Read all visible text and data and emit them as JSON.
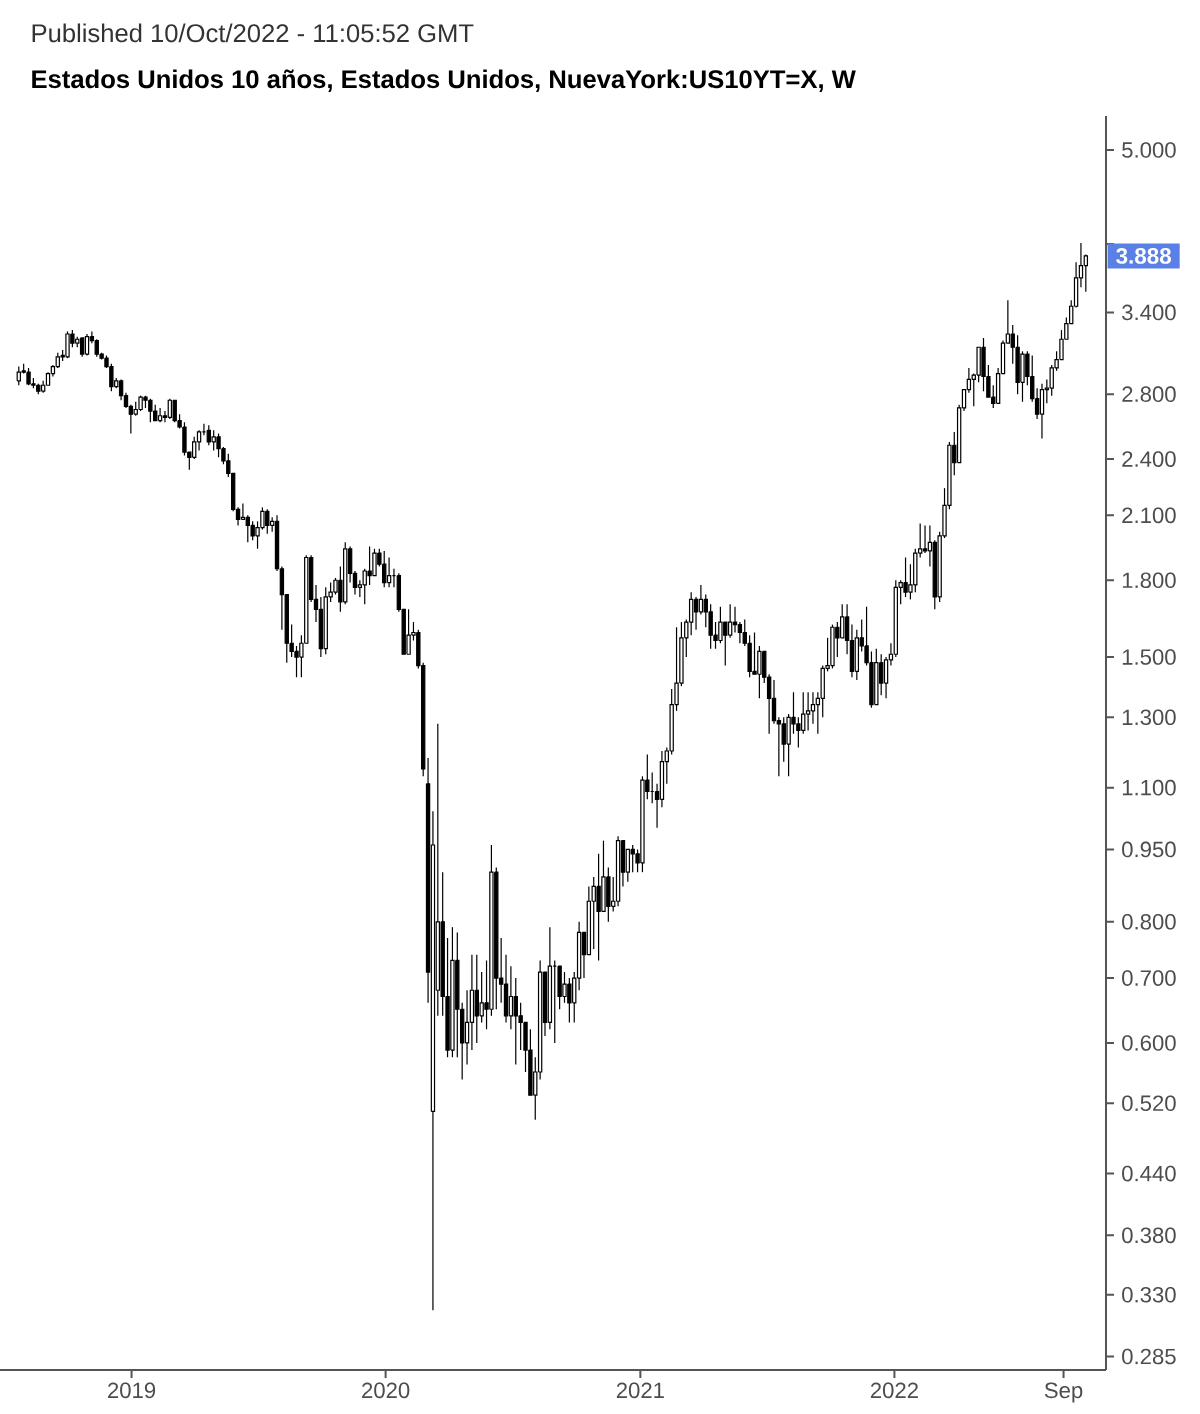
{
  "chart_data": {
    "type": "candlestick",
    "title": "Estados Unidos 10 años, Estados Unidos, NuevaYork:US10YT=X, W",
    "annotations": [
      "Published 10/Oct/2022 - 11:05:52 GMT",
      {
        "text": "3.888",
        "y": 3.888
      }
    ],
    "color": "#000000",
    "log": true,
    "xlim": [
      "2018-06-26",
      "2022-11-01"
    ],
    "xticks": [
      {
        "value": "2019-01-01",
        "label": "2019"
      },
      {
        "value": "2020-01-01",
        "label": "2020"
      },
      {
        "value": "2021-01-01",
        "label": "2021"
      },
      {
        "value": "2022-01-01",
        "label": "2022"
      },
      {
        "value": "2022-09-01",
        "label": "Sep"
      }
    ],
    "ylim": [
      0.276,
      5.42
    ],
    "yticks": [
      {
        "value": 5,
        "label": "5.000"
      },
      {
        "value": 4,
        "label": null
      },
      {
        "value": 3.4,
        "label": "3.400"
      },
      {
        "value": 2.8,
        "label": "2.800"
      },
      {
        "value": 2.4,
        "label": "2.400"
      },
      {
        "value": 2.1,
        "label": "2.100"
      },
      {
        "value": 1.8,
        "label": "1.800"
      },
      {
        "value": 1.5,
        "label": "1.500"
      },
      {
        "value": 1.3,
        "label": "1.300"
      },
      {
        "value": 1.1,
        "label": "1.100"
      },
      {
        "value": 0.95,
        "label": "0.950"
      },
      {
        "value": 0.8,
        "label": "0.800"
      },
      {
        "value": 0.7,
        "label": "0.700"
      },
      {
        "value": 0.6,
        "label": "0.600"
      },
      {
        "value": 0.52,
        "label": "0.520"
      },
      {
        "value": 0.44,
        "label": "0.440"
      },
      {
        "value": 0.38,
        "label": "0.380"
      },
      {
        "value": 0.33,
        "label": "0.330"
      },
      {
        "value": 0.285,
        "label": "0.285"
      }
    ],
    "x": [
      "2018-07-23",
      "2018-07-30",
      "2018-08-06",
      "2018-08-13",
      "2018-08-20",
      "2018-08-27",
      "2018-09-03",
      "2018-09-10",
      "2018-09-17",
      "2018-09-24",
      "2018-10-01",
      "2018-10-08",
      "2018-10-15",
      "2018-10-22",
      "2018-10-29",
      "2018-11-05",
      "2018-11-12",
      "2018-11-19",
      "2018-11-26",
      "2018-12-03",
      "2018-12-10",
      "2018-12-17",
      "2018-12-24",
      "2018-12-31",
      "2019-01-07",
      "2019-01-14",
      "2019-01-21",
      "2019-01-28",
      "2019-02-04",
      "2019-02-11",
      "2019-02-18",
      "2019-02-25",
      "2019-03-04",
      "2019-03-11",
      "2019-03-18",
      "2019-03-25",
      "2019-04-01",
      "2019-04-08",
      "2019-04-15",
      "2019-04-22",
      "2019-04-29",
      "2019-05-06",
      "2019-05-13",
      "2019-05-20",
      "2019-05-27",
      "2019-06-03",
      "2019-06-10",
      "2019-06-17",
      "2019-06-24",
      "2019-07-01",
      "2019-07-08",
      "2019-07-15",
      "2019-07-22",
      "2019-07-29",
      "2019-08-05",
      "2019-08-12",
      "2019-08-19",
      "2019-08-26",
      "2019-09-02",
      "2019-09-09",
      "2019-09-16",
      "2019-09-23",
      "2019-09-30",
      "2019-10-07",
      "2019-10-14",
      "2019-10-21",
      "2019-10-28",
      "2019-11-04",
      "2019-11-11",
      "2019-11-18",
      "2019-11-25",
      "2019-12-02",
      "2019-12-09",
      "2019-12-16",
      "2019-12-23",
      "2019-12-30",
      "2020-01-06",
      "2020-01-13",
      "2020-01-20",
      "2020-01-27",
      "2020-02-03",
      "2020-02-10",
      "2020-02-17",
      "2020-02-24",
      "2020-03-02",
      "2020-03-09",
      "2020-03-16",
      "2020-03-23",
      "2020-03-30",
      "2020-04-06",
      "2020-04-13",
      "2020-04-20",
      "2020-04-27",
      "2020-05-04",
      "2020-05-11",
      "2020-05-18",
      "2020-05-25",
      "2020-06-01",
      "2020-06-08",
      "2020-06-15",
      "2020-06-22",
      "2020-06-29",
      "2020-07-06",
      "2020-07-13",
      "2020-07-20",
      "2020-07-27",
      "2020-08-03",
      "2020-08-10",
      "2020-08-17",
      "2020-08-24",
      "2020-08-31",
      "2020-09-07",
      "2020-09-14",
      "2020-09-21",
      "2020-09-28",
      "2020-10-05",
      "2020-10-12",
      "2020-10-19",
      "2020-10-26",
      "2020-11-02",
      "2020-11-09",
      "2020-11-16",
      "2020-11-23",
      "2020-11-30",
      "2020-12-07",
      "2020-12-14",
      "2020-12-21",
      "2020-12-28",
      "2021-01-04",
      "2021-01-11",
      "2021-01-18",
      "2021-01-25",
      "2021-02-01",
      "2021-02-08",
      "2021-02-15",
      "2021-02-22",
      "2021-03-01",
      "2021-03-08",
      "2021-03-15",
      "2021-03-22",
      "2021-03-29",
      "2021-04-05",
      "2021-04-12",
      "2021-04-19",
      "2021-04-26",
      "2021-05-03",
      "2021-05-10",
      "2021-05-17",
      "2021-05-24",
      "2021-05-31",
      "2021-06-07",
      "2021-06-14",
      "2021-06-21",
      "2021-06-28",
      "2021-07-05",
      "2021-07-12",
      "2021-07-19",
      "2021-07-26",
      "2021-08-02",
      "2021-08-09",
      "2021-08-16",
      "2021-08-23",
      "2021-08-30",
      "2021-09-06",
      "2021-09-13",
      "2021-09-20",
      "2021-09-27",
      "2021-10-04",
      "2021-10-11",
      "2021-10-18",
      "2021-10-25",
      "2021-11-01",
      "2021-11-08",
      "2021-11-15",
      "2021-11-22",
      "2021-11-29",
      "2021-12-06",
      "2021-12-13",
      "2021-12-20",
      "2021-12-27",
      "2022-01-03",
      "2022-01-10",
      "2022-01-17",
      "2022-01-24",
      "2022-01-31",
      "2022-02-07",
      "2022-02-14",
      "2022-02-21",
      "2022-02-28",
      "2022-03-07",
      "2022-03-14",
      "2022-03-21",
      "2022-03-28",
      "2022-04-04",
      "2022-04-11",
      "2022-04-18",
      "2022-04-25",
      "2022-05-02",
      "2022-05-09",
      "2022-05-16",
      "2022-05-23",
      "2022-05-30",
      "2022-06-06",
      "2022-06-13",
      "2022-06-20",
      "2022-06-27",
      "2022-07-04",
      "2022-07-11",
      "2022-07-18",
      "2022-07-25",
      "2022-08-01",
      "2022-08-08",
      "2022-08-15",
      "2022-08-22",
      "2022-08-29",
      "2022-09-05",
      "2022-09-12",
      "2022-09-19",
      "2022-09-26",
      "2022-10-03"
    ],
    "ohlc": [
      [
        2.89,
        2.99,
        2.86,
        2.95
      ],
      [
        2.96,
        3.01,
        2.94,
        2.95
      ],
      [
        2.95,
        2.98,
        2.86,
        2.87
      ],
      [
        2.87,
        2.91,
        2.84,
        2.86
      ],
      [
        2.86,
        2.87,
        2.8,
        2.82
      ],
      [
        2.82,
        2.89,
        2.81,
        2.86
      ],
      [
        2.86,
        2.95,
        2.86,
        2.94
      ],
      [
        2.94,
        3.0,
        2.92,
        2.99
      ],
      [
        2.99,
        3.09,
        2.98,
        3.06
      ],
      [
        3.07,
        3.11,
        3.03,
        3.06
      ],
      [
        3.06,
        3.25,
        3.05,
        3.23
      ],
      [
        3.23,
        3.26,
        3.13,
        3.16
      ],
      [
        3.16,
        3.21,
        3.13,
        3.19
      ],
      [
        3.2,
        3.2,
        3.06,
        3.08
      ],
      [
        3.08,
        3.23,
        3.07,
        3.21
      ],
      [
        3.21,
        3.25,
        3.16,
        3.18
      ],
      [
        3.18,
        3.19,
        3.06,
        3.08
      ],
      [
        3.08,
        3.09,
        3.04,
        3.05
      ],
      [
        3.05,
        3.07,
        2.98,
        2.99
      ],
      [
        2.99,
        3.01,
        2.82,
        2.85
      ],
      [
        2.85,
        2.91,
        2.84,
        2.89
      ],
      [
        2.89,
        2.9,
        2.76,
        2.79
      ],
      [
        2.79,
        2.81,
        2.71,
        2.72
      ],
      [
        2.72,
        2.73,
        2.55,
        2.67
      ],
      [
        2.67,
        2.75,
        2.66,
        2.7
      ],
      [
        2.7,
        2.79,
        2.69,
        2.78
      ],
      [
        2.78,
        2.79,
        2.71,
        2.76
      ],
      [
        2.76,
        2.77,
        2.62,
        2.69
      ],
      [
        2.69,
        2.73,
        2.63,
        2.63
      ],
      [
        2.63,
        2.71,
        2.62,
        2.66
      ],
      [
        2.66,
        2.69,
        2.62,
        2.65
      ],
      [
        2.65,
        2.77,
        2.64,
        2.76
      ],
      [
        2.76,
        2.76,
        2.62,
        2.63
      ],
      [
        2.63,
        2.67,
        2.58,
        2.59
      ],
      [
        2.59,
        2.62,
        2.42,
        2.44
      ],
      [
        2.44,
        2.44,
        2.34,
        2.41
      ],
      [
        2.41,
        2.53,
        2.4,
        2.5
      ],
      [
        2.5,
        2.57,
        2.45,
        2.56
      ],
      [
        2.56,
        2.61,
        2.54,
        2.56
      ],
      [
        2.57,
        2.6,
        2.48,
        2.5
      ],
      [
        2.5,
        2.57,
        2.45,
        2.53
      ],
      [
        2.53,
        2.55,
        2.41,
        2.46
      ],
      [
        2.46,
        2.47,
        2.37,
        2.39
      ],
      [
        2.39,
        2.43,
        2.3,
        2.32
      ],
      [
        2.32,
        2.32,
        2.12,
        2.13
      ],
      [
        2.13,
        2.14,
        2.05,
        2.08
      ],
      [
        2.08,
        2.16,
        2.08,
        2.09
      ],
      [
        2.09,
        2.1,
        1.97,
        2.05
      ],
      [
        2.05,
        2.07,
        1.98,
        2.0
      ],
      [
        2.0,
        2.07,
        1.94,
        2.04
      ],
      [
        2.04,
        2.14,
        2.03,
        2.12
      ],
      [
        2.12,
        2.13,
        2.01,
        2.05
      ],
      [
        2.05,
        2.09,
        2.02,
        2.07
      ],
      [
        2.07,
        2.1,
        1.84,
        1.85
      ],
      [
        1.85,
        1.86,
        1.6,
        1.74
      ],
      [
        1.74,
        1.74,
        1.48,
        1.55
      ],
      [
        1.55,
        1.62,
        1.5,
        1.52
      ],
      [
        1.52,
        1.54,
        1.43,
        1.5
      ],
      [
        1.5,
        1.58,
        1.43,
        1.55
      ],
      [
        1.55,
        1.91,
        1.55,
        1.9
      ],
      [
        1.9,
        1.91,
        1.71,
        1.72
      ],
      [
        1.72,
        1.78,
        1.63,
        1.68
      ],
      [
        1.68,
        1.73,
        1.5,
        1.53
      ],
      [
        1.53,
        1.77,
        1.51,
        1.73
      ],
      [
        1.73,
        1.79,
        1.71,
        1.75
      ],
      [
        1.75,
        1.81,
        1.74,
        1.8
      ],
      [
        1.8,
        1.86,
        1.67,
        1.71
      ],
      [
        1.71,
        1.97,
        1.7,
        1.94
      ],
      [
        1.94,
        1.95,
        1.79,
        1.83
      ],
      [
        1.83,
        1.84,
        1.74,
        1.77
      ],
      [
        1.77,
        1.8,
        1.73,
        1.78
      ],
      [
        1.78,
        1.85,
        1.7,
        1.84
      ],
      [
        1.84,
        1.95,
        1.78,
        1.82
      ],
      [
        1.82,
        1.94,
        1.82,
        1.92
      ],
      [
        1.92,
        1.94,
        1.86,
        1.87
      ],
      [
        1.87,
        1.93,
        1.77,
        1.79
      ],
      [
        1.79,
        1.9,
        1.77,
        1.82
      ],
      [
        1.82,
        1.85,
        1.77,
        1.82
      ],
      [
        1.82,
        1.83,
        1.67,
        1.68
      ],
      [
        1.68,
        1.68,
        1.51,
        1.51
      ],
      [
        1.51,
        1.68,
        1.51,
        1.58
      ],
      [
        1.58,
        1.63,
        1.56,
        1.59
      ],
      [
        1.59,
        1.6,
        1.46,
        1.47
      ],
      [
        1.47,
        1.48,
        1.13,
        1.15
      ],
      [
        1.11,
        1.18,
        0.66,
        0.71
      ],
      [
        0.51,
        1.04,
        0.318,
        0.96
      ],
      [
        0.68,
        1.28,
        0.64,
        0.8
      ],
      [
        0.8,
        0.9,
        0.64,
        0.67
      ],
      [
        0.67,
        0.77,
        0.58,
        0.59
      ],
      [
        0.59,
        0.79,
        0.58,
        0.73
      ],
      [
        0.73,
        0.78,
        0.58,
        0.65
      ],
      [
        0.65,
        0.66,
        0.55,
        0.6
      ],
      [
        0.6,
        0.68,
        0.57,
        0.63
      ],
      [
        0.63,
        0.74,
        0.59,
        0.68
      ],
      [
        0.68,
        0.74,
        0.6,
        0.64
      ],
      [
        0.64,
        0.71,
        0.63,
        0.66
      ],
      [
        0.66,
        0.73,
        0.62,
        0.65
      ],
      [
        0.65,
        0.96,
        0.64,
        0.9
      ],
      [
        0.9,
        0.91,
        0.65,
        0.7
      ],
      [
        0.7,
        0.77,
        0.66,
        0.69
      ],
      [
        0.69,
        0.74,
        0.63,
        0.64
      ],
      [
        0.64,
        0.72,
        0.62,
        0.67
      ],
      [
        0.67,
        0.7,
        0.57,
        0.64
      ],
      [
        0.64,
        0.66,
        0.59,
        0.63
      ],
      [
        0.63,
        0.63,
        0.56,
        0.59
      ],
      [
        0.59,
        0.62,
        0.53,
        0.53
      ],
      [
        0.53,
        0.58,
        0.5,
        0.56
      ],
      [
        0.56,
        0.73,
        0.55,
        0.71
      ],
      [
        0.71,
        0.71,
        0.61,
        0.63
      ],
      [
        0.63,
        0.79,
        0.62,
        0.72
      ],
      [
        0.72,
        0.73,
        0.6,
        0.72
      ],
      [
        0.72,
        0.72,
        0.65,
        0.67
      ],
      [
        0.67,
        0.71,
        0.66,
        0.69
      ],
      [
        0.69,
        0.7,
        0.63,
        0.66
      ],
      [
        0.66,
        0.71,
        0.63,
        0.7
      ],
      [
        0.7,
        0.8,
        0.68,
        0.78
      ],
      [
        0.78,
        0.78,
        0.7,
        0.74
      ],
      [
        0.74,
        0.87,
        0.74,
        0.84
      ],
      [
        0.84,
        0.89,
        0.75,
        0.87
      ],
      [
        0.87,
        0.94,
        0.73,
        0.82
      ],
      [
        0.82,
        0.97,
        0.82,
        0.89
      ],
      [
        0.89,
        0.91,
        0.8,
        0.83
      ],
      [
        0.83,
        0.89,
        0.82,
        0.84
      ],
      [
        0.84,
        0.98,
        0.83,
        0.97
      ],
      [
        0.97,
        0.97,
        0.87,
        0.9
      ],
      [
        0.9,
        0.95,
        0.88,
        0.95
      ],
      [
        0.95,
        0.96,
        0.9,
        0.94
      ],
      [
        0.94,
        0.95,
        0.9,
        0.92
      ],
      [
        0.92,
        1.13,
        0.9,
        1.12
      ],
      [
        1.12,
        1.19,
        1.07,
        1.09
      ],
      [
        1.09,
        1.14,
        1.06,
        1.09
      ],
      [
        1.09,
        1.11,
        1.0,
        1.07
      ],
      [
        1.07,
        1.2,
        1.05,
        1.17
      ],
      [
        1.17,
        1.21,
        1.11,
        1.2
      ],
      [
        1.2,
        1.39,
        1.19,
        1.34
      ],
      [
        1.34,
        1.61,
        1.32,
        1.41
      ],
      [
        1.41,
        1.63,
        1.4,
        1.57
      ],
      [
        1.57,
        1.64,
        1.5,
        1.63
      ],
      [
        1.63,
        1.75,
        1.58,
        1.72
      ],
      [
        1.72,
        1.73,
        1.6,
        1.67
      ],
      [
        1.67,
        1.78,
        1.66,
        1.72
      ],
      [
        1.72,
        1.74,
        1.61,
        1.67
      ],
      [
        1.67,
        1.7,
        1.53,
        1.58
      ],
      [
        1.58,
        1.63,
        1.53,
        1.56
      ],
      [
        1.56,
        1.69,
        1.55,
        1.63
      ],
      [
        1.63,
        1.63,
        1.47,
        1.58
      ],
      [
        1.58,
        1.7,
        1.57,
        1.63
      ],
      [
        1.63,
        1.69,
        1.59,
        1.62
      ],
      [
        1.62,
        1.63,
        1.55,
        1.59
      ],
      [
        1.59,
        1.64,
        1.54,
        1.55
      ],
      [
        1.55,
        1.58,
        1.43,
        1.45
      ],
      [
        1.45,
        1.59,
        1.44,
        1.44
      ],
      [
        1.44,
        1.54,
        1.36,
        1.52
      ],
      [
        1.52,
        1.52,
        1.41,
        1.43
      ],
      [
        1.43,
        1.44,
        1.25,
        1.36
      ],
      [
        1.36,
        1.42,
        1.28,
        1.29
      ],
      [
        1.29,
        1.3,
        1.13,
        1.28
      ],
      [
        1.28,
        1.3,
        1.17,
        1.22
      ],
      [
        1.22,
        1.31,
        1.13,
        1.3
      ],
      [
        1.3,
        1.38,
        1.25,
        1.28
      ],
      [
        1.28,
        1.3,
        1.21,
        1.26
      ],
      [
        1.26,
        1.38,
        1.25,
        1.31
      ],
      [
        1.31,
        1.38,
        1.26,
        1.32
      ],
      [
        1.32,
        1.38,
        1.28,
        1.34
      ],
      [
        1.34,
        1.38,
        1.25,
        1.36
      ],
      [
        1.36,
        1.47,
        1.3,
        1.46
      ],
      [
        1.46,
        1.57,
        1.45,
        1.47
      ],
      [
        1.47,
        1.62,
        1.46,
        1.61
      ],
      [
        1.61,
        1.63,
        1.5,
        1.57
      ],
      [
        1.57,
        1.7,
        1.57,
        1.65
      ],
      [
        1.65,
        1.7,
        1.51,
        1.56
      ],
      [
        1.56,
        1.62,
        1.43,
        1.45
      ],
      [
        1.45,
        1.6,
        1.42,
        1.57
      ],
      [
        1.57,
        1.64,
        1.52,
        1.54
      ],
      [
        1.54,
        1.69,
        1.47,
        1.48
      ],
      [
        1.48,
        1.52,
        1.33,
        1.34
      ],
      [
        1.34,
        1.53,
        1.34,
        1.48
      ],
      [
        1.48,
        1.51,
        1.37,
        1.41
      ],
      [
        1.41,
        1.5,
        1.36,
        1.49
      ],
      [
        1.49,
        1.55,
        1.47,
        1.51
      ],
      [
        1.51,
        1.8,
        1.5,
        1.77
      ],
      [
        1.77,
        1.8,
        1.7,
        1.79
      ],
      [
        1.79,
        1.9,
        1.73,
        1.75
      ],
      [
        1.75,
        1.87,
        1.72,
        1.78
      ],
      [
        1.78,
        1.94,
        1.75,
        1.92
      ],
      [
        1.92,
        2.06,
        1.9,
        1.94
      ],
      [
        1.94,
        2.05,
        1.92,
        1.93
      ],
      [
        1.93,
        2.05,
        1.86,
        1.97
      ],
      [
        1.97,
        1.98,
        1.68,
        1.73
      ],
      [
        1.73,
        2.02,
        1.71,
        2.0
      ],
      [
        2.0,
        2.24,
        1.99,
        2.15
      ],
      [
        2.15,
        2.5,
        2.13,
        2.48
      ],
      [
        2.48,
        2.56,
        2.31,
        2.38
      ],
      [
        2.38,
        2.73,
        2.38,
        2.71
      ],
      [
        2.71,
        2.83,
        2.69,
        2.83
      ],
      [
        2.83,
        2.98,
        2.81,
        2.9
      ],
      [
        2.9,
        2.94,
        2.72,
        2.93
      ],
      [
        2.93,
        3.13,
        2.88,
        3.13
      ],
      [
        3.13,
        3.2,
        2.82,
        2.92
      ],
      [
        2.92,
        3.0,
        2.78,
        2.78
      ],
      [
        2.78,
        2.86,
        2.71,
        2.74
      ],
      [
        2.74,
        2.98,
        2.74,
        2.94
      ],
      [
        2.94,
        3.18,
        2.94,
        3.16
      ],
      [
        3.16,
        3.5,
        3.16,
        3.23
      ],
      [
        3.23,
        3.3,
        3.01,
        3.13
      ],
      [
        3.13,
        3.22,
        2.8,
        2.88
      ],
      [
        2.88,
        3.1,
        2.75,
        3.08
      ],
      [
        3.08,
        3.1,
        2.86,
        2.92
      ],
      [
        2.92,
        3.07,
        2.75,
        2.77
      ],
      [
        2.77,
        2.84,
        2.64,
        2.67
      ],
      [
        2.67,
        2.87,
        2.52,
        2.83
      ],
      [
        2.83,
        2.9,
        2.74,
        2.84
      ],
      [
        2.84,
        3.0,
        2.79,
        2.98
      ],
      [
        2.98,
        3.1,
        2.96,
        3.04
      ],
      [
        3.04,
        3.26,
        3.04,
        3.19
      ],
      [
        3.19,
        3.36,
        3.19,
        3.31
      ],
      [
        3.31,
        3.5,
        3.31,
        3.45
      ],
      [
        3.45,
        3.83,
        3.44,
        3.69
      ],
      [
        3.69,
        4.01,
        3.61,
        3.8
      ],
      [
        3.8,
        3.9,
        3.57,
        3.888
      ]
    ]
  }
}
